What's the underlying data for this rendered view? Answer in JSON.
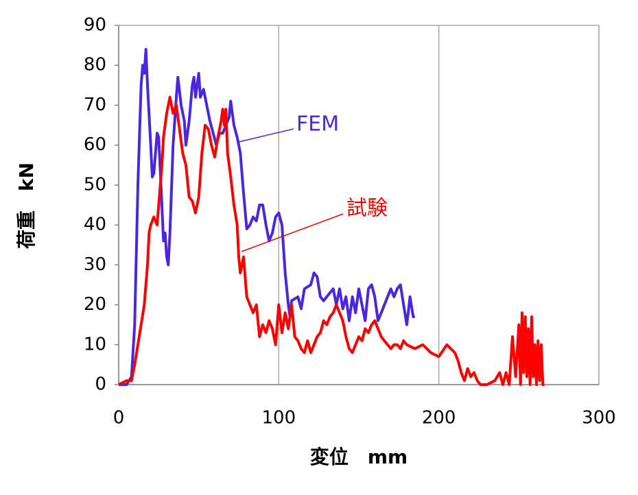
{
  "chart_data": {
    "type": "line",
    "xlabel": "変位　mm",
    "ylabel": "荷重　kN",
    "xlim": [
      0,
      300
    ],
    "xticks": [
      0,
      100,
      200,
      300
    ],
    "ylim": [
      0,
      90
    ],
    "yticks": [
      0,
      10,
      20,
      30,
      40,
      50,
      60,
      70,
      80,
      90
    ],
    "grid": "x",
    "annotations": [
      {
        "text": "FEM",
        "series": 0
      },
      {
        "text": "試験",
        "series": 1
      }
    ],
    "series": [
      {
        "color": "#4b26e0",
        "x": [
          0,
          5,
          8,
          10,
          12,
          14,
          15,
          16,
          17,
          18,
          20,
          21,
          22,
          24,
          25,
          27,
          28,
          29,
          30,
          31,
          32,
          34,
          36,
          37,
          39,
          41,
          42,
          44,
          46,
          47,
          48,
          50,
          51,
          53,
          55,
          57,
          59,
          61,
          63,
          65,
          67,
          69,
          70,
          72,
          74,
          76,
          78,
          80,
          82,
          84,
          86,
          88,
          90,
          92,
          94,
          96,
          98,
          100,
          102,
          104,
          106,
          107,
          108,
          112,
          114,
          116,
          120,
          122,
          124,
          126,
          128,
          130,
          134,
          136,
          138,
          140,
          142,
          144,
          146,
          148,
          150,
          152,
          154,
          156,
          158,
          160,
          162,
          164,
          166,
          168,
          170,
          172,
          174,
          176,
          178,
          180,
          182,
          184,
          185
        ],
        "values": [
          0,
          0,
          2,
          15,
          50,
          75,
          80,
          78,
          84,
          75,
          60,
          52,
          53,
          63,
          62,
          45,
          36,
          38,
          32,
          30,
          38,
          60,
          72,
          77,
          70,
          66,
          60,
          66,
          75,
          77,
          72,
          78,
          72,
          74,
          70,
          66,
          63,
          60,
          63,
          63,
          65,
          67,
          71,
          65,
          62,
          58,
          48,
          39,
          40,
          42,
          41,
          45,
          45,
          40,
          36,
          38,
          42,
          43,
          40,
          28,
          20,
          17,
          21,
          22,
          19,
          24,
          25,
          28,
          27,
          22,
          21,
          22,
          24,
          20,
          24,
          19,
          22,
          16,
          22,
          18,
          24,
          20,
          16,
          24,
          25,
          22,
          16,
          18,
          20,
          22,
          24,
          22,
          24,
          25,
          20,
          15,
          22,
          17,
          17
        ]
      },
      {
        "color": "#ff0000",
        "x": [
          0,
          5,
          8,
          10,
          12,
          14,
          16,
          18,
          19,
          20,
          22,
          24,
          26,
          27,
          28,
          30,
          32,
          34,
          36,
          38,
          40,
          42,
          44,
          46,
          48,
          50,
          52,
          54,
          56,
          58,
          60,
          62,
          64,
          65,
          66,
          67,
          68,
          70,
          72,
          74,
          75,
          76,
          78,
          80,
          82,
          84,
          86,
          88,
          90,
          92,
          94,
          96,
          98,
          100,
          102,
          104,
          106,
          108,
          110,
          112,
          114,
          116,
          118,
          120,
          122,
          124,
          126,
          128,
          130,
          132,
          134,
          136,
          138,
          140,
          142,
          144,
          146,
          148,
          150,
          152,
          154,
          156,
          158,
          160,
          162,
          164,
          166,
          168,
          170,
          172,
          174,
          176,
          178,
          180,
          185,
          190,
          195,
          200,
          205,
          210,
          212,
          214,
          216,
          218,
          220,
          222,
          224,
          226,
          230,
          235,
          238,
          240,
          242,
          244,
          246,
          248,
          250,
          251,
          252,
          253,
          254,
          255,
          256,
          257,
          258,
          259,
          260,
          261,
          262,
          263,
          264,
          265,
          266
        ],
        "values": [
          0,
          1,
          1,
          5,
          10,
          15,
          20,
          30,
          38,
          40,
          42,
          40,
          50,
          55,
          62,
          68,
          72,
          68,
          70,
          64,
          58,
          55,
          47,
          46,
          43,
          47,
          58,
          65,
          64,
          60,
          57,
          62,
          66,
          69,
          65,
          69,
          58,
          52,
          45,
          40,
          32,
          28,
          32,
          22,
          20,
          18,
          20,
          12,
          15,
          13,
          16,
          14,
          10,
          20,
          13,
          18,
          14,
          20,
          12,
          11,
          9,
          8,
          11,
          8,
          10,
          12,
          13,
          16,
          15,
          17,
          18,
          20,
          18,
          16,
          12,
          9,
          8,
          10,
          12,
          11,
          14,
          13,
          15,
          16,
          14,
          12,
          11,
          10,
          9,
          10,
          10,
          9,
          11,
          10,
          9,
          10,
          8,
          7,
          10,
          8,
          6,
          3,
          1,
          4,
          2,
          3,
          1,
          0,
          0,
          1,
          3,
          0,
          3,
          0,
          12,
          2,
          15,
          0,
          18,
          3,
          17,
          2,
          14,
          0,
          17,
          2,
          10,
          0,
          11,
          1,
          10,
          0,
          0
        ]
      }
    ]
  }
}
